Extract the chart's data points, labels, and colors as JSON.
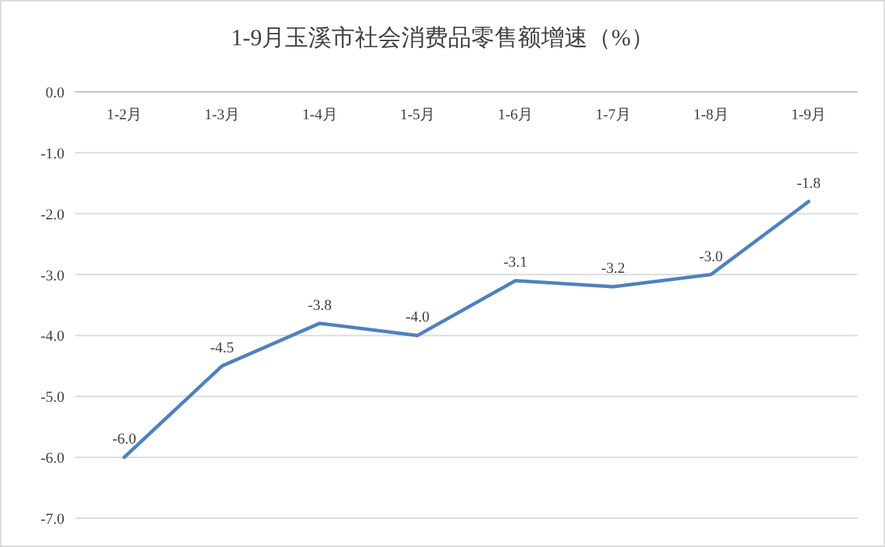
{
  "chart_data": {
    "type": "line",
    "title": "1-9月玉溪市社会消费品零售额增速（%）",
    "categories": [
      "1-2月",
      "1-3月",
      "1-4月",
      "1-5月",
      "1-6月",
      "1-7月",
      "1-8月",
      "1-9月"
    ],
    "series": [
      {
        "color": "#4f81bd",
        "values": [
          -6.0,
          -4.5,
          -3.8,
          -4.0,
          -3.1,
          -3.2,
          -3.0,
          -1.8
        ],
        "value_labels": [
          "-6.0",
          "-4.5",
          "-3.8",
          "-4.0",
          "-3.1",
          "-3.2",
          "-3.0",
          "-1.8"
        ]
      }
    ],
    "ylim": [
      -7,
      0
    ],
    "yticks": [
      {
        "value": 0,
        "label": "0.0"
      },
      {
        "value": -1,
        "label": "-1.0"
      },
      {
        "value": -2,
        "label": "-2.0"
      },
      {
        "value": -3,
        "label": "-3.0"
      },
      {
        "value": -4,
        "label": "-4.0"
      },
      {
        "value": -5,
        "label": "-5.0"
      },
      {
        "value": -6,
        "label": "-6.0"
      },
      {
        "value": -7,
        "label": "-7.0"
      }
    ],
    "grid": "y",
    "marker": "none",
    "line_style": "solid"
  }
}
